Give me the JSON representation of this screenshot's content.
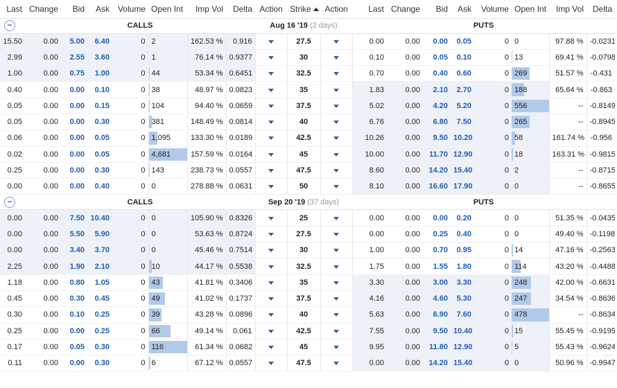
{
  "columns": {
    "calls": [
      "Last",
      "Change",
      "Bid",
      "Ask",
      "Volume",
      "Open Int",
      "Imp Vol",
      "Delta",
      "Action"
    ],
    "strike": "Strike",
    "puts": [
      "Action",
      "Last",
      "Change",
      "Bid",
      "Ask",
      "Volume",
      "Open Int",
      "Imp Vol",
      "Delta"
    ]
  },
  "groups": [
    {
      "calls_label": "CALLS",
      "puts_label": "PUTS",
      "expiry": "Aug 16 '19",
      "days": "(2 days)",
      "rows": [
        {
          "strike": "27.5",
          "call_itm": true,
          "put_itm": false,
          "call": {
            "last": "15.50",
            "change": "0.00",
            "bid": "5.00",
            "ask": "6.40",
            "volume": "0",
            "oi": "2",
            "iv": "162.53 %",
            "delta": "0.916"
          },
          "put": {
            "last": "0.00",
            "change": "0.00",
            "bid": "0.00",
            "ask": "0.05",
            "volume": "0",
            "oi": "0",
            "iv": "97.88 %",
            "delta": "-0.0231"
          },
          "call_oi_frac": 0,
          "put_oi_frac": 0
        },
        {
          "strike": "30",
          "call_itm": true,
          "put_itm": false,
          "call": {
            "last": "2.99",
            "change": "0.00",
            "bid": "2.55",
            "ask": "3.60",
            "volume": "0",
            "oi": "1",
            "iv": "76.14 %",
            "delta": "0.9377"
          },
          "put": {
            "last": "0.10",
            "change": "0.00",
            "bid": "0.05",
            "ask": "0.10",
            "volume": "0",
            "oi": "13",
            "iv": "69.41 %",
            "delta": "-0.0798"
          },
          "call_oi_frac": 0,
          "put_oi_frac": 0.02
        },
        {
          "strike": "32.5",
          "call_itm": true,
          "put_itm": false,
          "call": {
            "last": "1.00",
            "change": "0.00",
            "bid": "0.75",
            "ask": "1.00",
            "volume": "0",
            "oi": "44",
            "iv": "53.34 %",
            "delta": "0.6451"
          },
          "put": {
            "last": "0.70",
            "change": "0.00",
            "bid": "0.40",
            "ask": "0.60",
            "volume": "0",
            "oi": "269",
            "iv": "51.57 %",
            "delta": "-0.431"
          },
          "call_oi_frac": 0.01,
          "put_oi_frac": 0.48
        },
        {
          "strike": "35",
          "call_itm": false,
          "put_itm": true,
          "call": {
            "last": "0.40",
            "change": "0.00",
            "bid": "0.00",
            "ask": "0.10",
            "volume": "0",
            "oi": "38",
            "iv": "48.97 %",
            "delta": "0.0823"
          },
          "put": {
            "last": "1.83",
            "change": "0.00",
            "bid": "2.10",
            "ask": "2.70",
            "volume": "0",
            "oi": "188",
            "iv": "65.64 %",
            "delta": "-0.863"
          },
          "call_oi_frac": 0.01,
          "put_oi_frac": 0.34
        },
        {
          "strike": "37.5",
          "call_itm": false,
          "put_itm": true,
          "call": {
            "last": "0.05",
            "change": "0.00",
            "bid": "0.00",
            "ask": "0.15",
            "volume": "0",
            "oi": "104",
            "iv": "94.40 %",
            "delta": "0.0659"
          },
          "put": {
            "last": "5.02",
            "change": "0.00",
            "bid": "4.20",
            "ask": "5.20",
            "volume": "0",
            "oi": "556",
            "iv": "--",
            "delta": "-0.8149"
          },
          "call_oi_frac": 0.02,
          "put_oi_frac": 1.0
        },
        {
          "strike": "40",
          "call_itm": false,
          "put_itm": true,
          "call": {
            "last": "0.05",
            "change": "0.00",
            "bid": "0.00",
            "ask": "0.30",
            "volume": "0",
            "oi": "381",
            "iv": "148.49 %",
            "delta": "0.0814"
          },
          "put": {
            "last": "6.76",
            "change": "0.00",
            "bid": "6.80",
            "ask": "7.50",
            "volume": "0",
            "oi": "265",
            "iv": "--",
            "delta": "-0.8945"
          },
          "call_oi_frac": 0.08,
          "put_oi_frac": 0.48
        },
        {
          "strike": "42.5",
          "call_itm": false,
          "put_itm": true,
          "call": {
            "last": "0.06",
            "change": "0.00",
            "bid": "0.00",
            "ask": "0.05",
            "volume": "0",
            "oi": "1,095",
            "iv": "133.30 %",
            "delta": "0.0189"
          },
          "put": {
            "last": "10.26",
            "change": "0.00",
            "bid": "9.50",
            "ask": "10.20",
            "volume": "0",
            "oi": "58",
            "iv": "161.74 %",
            "delta": "-0.956"
          },
          "call_oi_frac": 0.23,
          "put_oi_frac": 0.1
        },
        {
          "strike": "45",
          "call_itm": false,
          "put_itm": true,
          "call": {
            "last": "0.02",
            "change": "0.00",
            "bid": "0.00",
            "ask": "0.05",
            "volume": "0",
            "oi": "4,681",
            "iv": "157.59 %",
            "delta": "0.0164"
          },
          "put": {
            "last": "10.00",
            "change": "0.00",
            "bid": "11.70",
            "ask": "12.90",
            "volume": "0",
            "oi": "18",
            "iv": "163.31 %",
            "delta": "-0.9815"
          },
          "call_oi_frac": 1.0,
          "put_oi_frac": 0.03
        },
        {
          "strike": "47.5",
          "call_itm": false,
          "put_itm": true,
          "call": {
            "last": "0.25",
            "change": "0.00",
            "bid": "0.00",
            "ask": "0.30",
            "volume": "0",
            "oi": "143",
            "iv": "238.73 %",
            "delta": "0.0557"
          },
          "put": {
            "last": "8.60",
            "change": "0.00",
            "bid": "14.20",
            "ask": "15.40",
            "volume": "0",
            "oi": "2",
            "iv": "--",
            "delta": "-0.8715"
          },
          "call_oi_frac": 0.03,
          "put_oi_frac": 0
        },
        {
          "strike": "50",
          "call_itm": false,
          "put_itm": true,
          "call": {
            "last": "0.00",
            "change": "0.00",
            "bid": "0.00",
            "ask": "0.40",
            "volume": "0",
            "oi": "0",
            "iv": "278.88 %",
            "delta": "0.0631"
          },
          "put": {
            "last": "8.10",
            "change": "0.00",
            "bid": "16.60",
            "ask": "17.90",
            "volume": "0",
            "oi": "0",
            "iv": "--",
            "delta": "-0.8655"
          },
          "call_oi_frac": 0,
          "put_oi_frac": 0
        }
      ]
    },
    {
      "calls_label": "CALLS",
      "puts_label": "PUTS",
      "expiry": "Sep 20 '19",
      "days": "(37 days)",
      "rows": [
        {
          "strike": "25",
          "call_itm": true,
          "put_itm": false,
          "call": {
            "last": "0.00",
            "change": "0.00",
            "bid": "7.50",
            "ask": "10.40",
            "volume": "0",
            "oi": "0",
            "iv": "105.90 %",
            "delta": "0.8326"
          },
          "put": {
            "last": "0.00",
            "change": "0.00",
            "bid": "0.00",
            "ask": "0.20",
            "volume": "0",
            "oi": "0",
            "iv": "51.35 %",
            "delta": "-0.0435"
          },
          "call_oi_frac": 0,
          "put_oi_frac": 0
        },
        {
          "strike": "27.5",
          "call_itm": true,
          "put_itm": false,
          "call": {
            "last": "0.00",
            "change": "0.00",
            "bid": "5.50",
            "ask": "5.90",
            "volume": "0",
            "oi": "0",
            "iv": "53.63 %",
            "delta": "0.8724"
          },
          "put": {
            "last": "0.00",
            "change": "0.00",
            "bid": "0.25",
            "ask": "0.40",
            "volume": "0",
            "oi": "0",
            "iv": "49.40 %",
            "delta": "-0.1198"
          },
          "call_oi_frac": 0,
          "put_oi_frac": 0
        },
        {
          "strike": "30",
          "call_itm": true,
          "put_itm": false,
          "call": {
            "last": "0.00",
            "change": "0.00",
            "bid": "3.40",
            "ask": "3.70",
            "volume": "0",
            "oi": "0",
            "iv": "45.46 %",
            "delta": "0.7514"
          },
          "put": {
            "last": "1.00",
            "change": "0.00",
            "bid": "0.70",
            "ask": "0.95",
            "volume": "0",
            "oi": "14",
            "iv": "47.16 %",
            "delta": "-0.2563"
          },
          "call_oi_frac": 0,
          "put_oi_frac": 0.03
        },
        {
          "strike": "32.5",
          "call_itm": true,
          "put_itm": false,
          "call": {
            "last": "2.25",
            "change": "0.00",
            "bid": "1.90",
            "ask": "2.10",
            "volume": "0",
            "oi": "10",
            "iv": "44.17 %",
            "delta": "0.5538"
          },
          "put": {
            "last": "1.75",
            "change": "0.00",
            "bid": "1.55",
            "ask": "1.80",
            "volume": "0",
            "oi": "114",
            "iv": "43.20 %",
            "delta": "-0.4488"
          },
          "call_oi_frac": 0.09,
          "put_oi_frac": 0.24
        },
        {
          "strike": "35",
          "call_itm": false,
          "put_itm": true,
          "call": {
            "last": "1.18",
            "change": "0.00",
            "bid": "0.80",
            "ask": "1.05",
            "volume": "0",
            "oi": "43",
            "iv": "41.81 %",
            "delta": "0.3406"
          },
          "put": {
            "last": "3.30",
            "change": "0.00",
            "bid": "3.00",
            "ask": "3.30",
            "volume": "0",
            "oi": "248",
            "iv": "42.00 %",
            "delta": "-0.6631"
          },
          "call_oi_frac": 0.37,
          "put_oi_frac": 0.52
        },
        {
          "strike": "37.5",
          "call_itm": false,
          "put_itm": true,
          "call": {
            "last": "0.45",
            "change": "0.00",
            "bid": "0.30",
            "ask": "0.45",
            "volume": "0",
            "oi": "49",
            "iv": "41.02 %",
            "delta": "0.1737"
          },
          "put": {
            "last": "4.16",
            "change": "0.00",
            "bid": "4.60",
            "ask": "5.30",
            "volume": "0",
            "oi": "247",
            "iv": "34.54 %",
            "delta": "-0.8636"
          },
          "call_oi_frac": 0.42,
          "put_oi_frac": 0.52
        },
        {
          "strike": "40",
          "call_itm": false,
          "put_itm": true,
          "call": {
            "last": "0.30",
            "change": "0.00",
            "bid": "0.10",
            "ask": "0.25",
            "volume": "0",
            "oi": "39",
            "iv": "43.28 %",
            "delta": "0.0896"
          },
          "put": {
            "last": "5.63",
            "change": "0.00",
            "bid": "6.90",
            "ask": "7.60",
            "volume": "0",
            "oi": "478",
            "iv": "--",
            "delta": "-0.8634"
          },
          "call_oi_frac": 0.34,
          "put_oi_frac": 1.0
        },
        {
          "strike": "42.5",
          "call_itm": false,
          "put_itm": true,
          "call": {
            "last": "0.25",
            "change": "0.00",
            "bid": "0.00",
            "ask": "0.25",
            "volume": "0",
            "oi": "66",
            "iv": "49.14 %",
            "delta": "0.061"
          },
          "put": {
            "last": "7.55",
            "change": "0.00",
            "bid": "9.50",
            "ask": "10.40",
            "volume": "0",
            "oi": "15",
            "iv": "55.45 %",
            "delta": "-0.9195"
          },
          "call_oi_frac": 0.57,
          "put_oi_frac": 0.03
        },
        {
          "strike": "45",
          "call_itm": false,
          "put_itm": true,
          "call": {
            "last": "0.17",
            "change": "0.00",
            "bid": "0.05",
            "ask": "0.30",
            "volume": "0",
            "oi": "116",
            "iv": "61.34 %",
            "delta": "0.0682"
          },
          "put": {
            "last": "9.95",
            "change": "0.00",
            "bid": "11.80",
            "ask": "12.90",
            "volume": "0",
            "oi": "5",
            "iv": "55.43 %",
            "delta": "-0.9624"
          },
          "call_oi_frac": 1.0,
          "put_oi_frac": 0.01
        },
        {
          "strike": "47.5",
          "call_itm": false,
          "put_itm": true,
          "call": {
            "last": "0.11",
            "change": "0.00",
            "bid": "0.00",
            "ask": "0.30",
            "volume": "0",
            "oi": "6",
            "iv": "67.12 %",
            "delta": "0.0557"
          },
          "put": {
            "last": "0.00",
            "change": "0.00",
            "bid": "14.20",
            "ask": "15.40",
            "volume": "0",
            "oi": "0",
            "iv": "50.96 %",
            "delta": "-0.9947"
          },
          "call_oi_frac": 0.05,
          "put_oi_frac": 0
        }
      ]
    }
  ]
}
